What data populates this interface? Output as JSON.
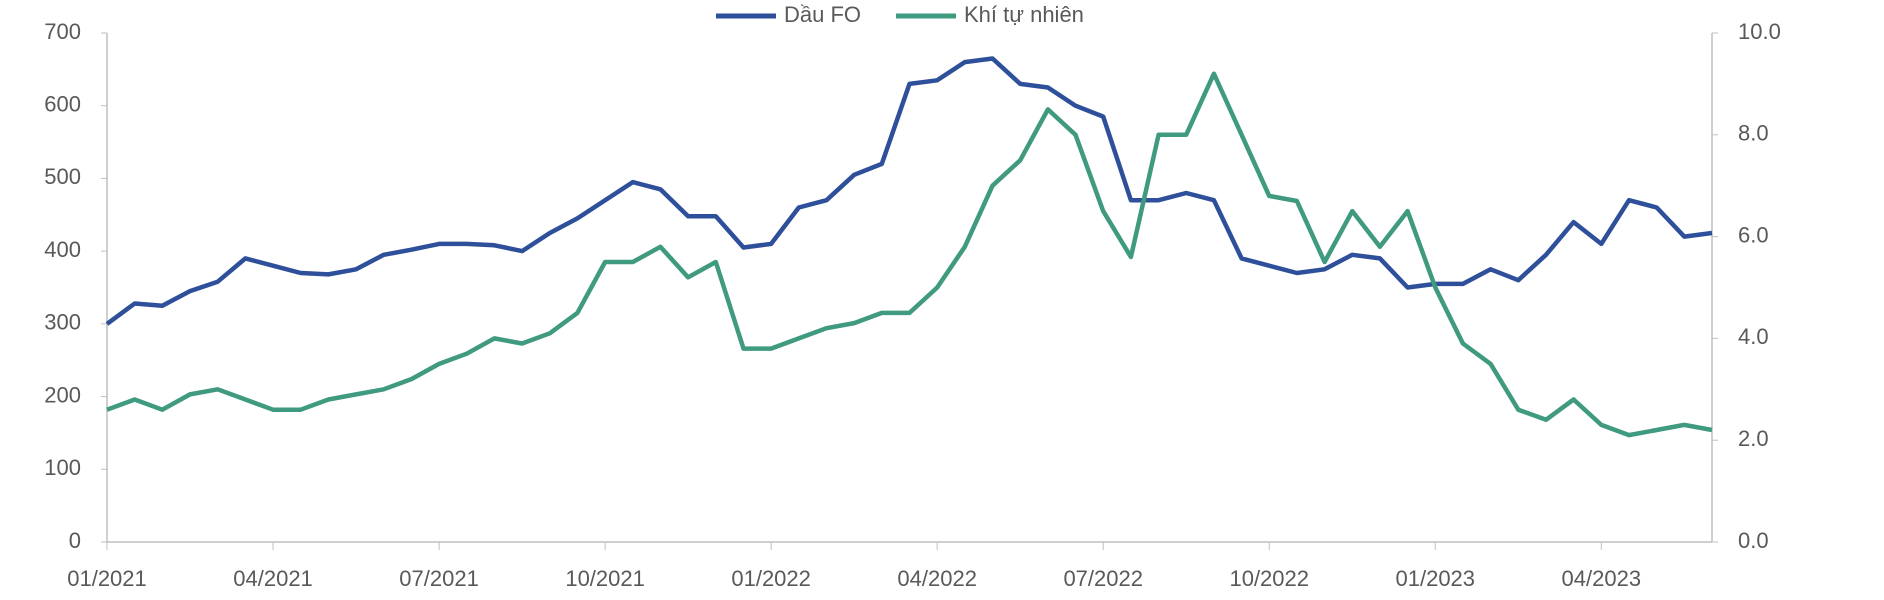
{
  "chart_data": {
    "type": "line",
    "categories": [
      "01/2021",
      null,
      null,
      null,
      null,
      null,
      "04/2021",
      null,
      null,
      null,
      null,
      null,
      "07/2021",
      null,
      null,
      null,
      null,
      null,
      "10/2021",
      null,
      null,
      null,
      null,
      null,
      "01/2022",
      null,
      null,
      null,
      null,
      null,
      "04/2022",
      null,
      null,
      null,
      null,
      null,
      "07/2022",
      null,
      null,
      null,
      null,
      null,
      "10/2022",
      null,
      null,
      null,
      null,
      null,
      "01/2023",
      null,
      null,
      null,
      null,
      null,
      "04/2023",
      null,
      null,
      null,
      null
    ],
    "series": [
      {
        "name": "Dầu FO",
        "color": "#2e4f9a",
        "values": [
          300,
          328,
          325,
          345,
          358,
          390,
          380,
          370,
          368,
          375,
          395,
          402,
          410,
          410,
          408,
          400,
          425,
          445,
          470,
          495,
          485,
          448,
          448,
          405,
          410,
          460,
          470,
          505,
          520,
          630,
          635,
          660,
          665,
          630,
          625,
          600,
          585,
          470,
          470,
          480,
          470,
          390,
          380,
          370,
          375,
          395,
          390,
          350,
          355,
          355,
          375,
          360,
          395,
          440,
          410,
          470,
          460,
          420,
          425
        ]
      },
      {
        "name": "Khí tự nhiên",
        "color": "#3f9a80",
        "axis": "y2",
        "values": [
          2.6,
          2.8,
          2.6,
          2.9,
          3.0,
          2.8,
          2.6,
          2.6,
          2.8,
          2.9,
          3.0,
          3.2,
          3.5,
          3.7,
          4.0,
          3.9,
          4.1,
          4.5,
          5.5,
          5.5,
          5.8,
          5.2,
          5.5,
          3.8,
          3.8,
          4.0,
          4.2,
          4.3,
          4.5,
          4.5,
          5.0,
          5.8,
          7.0,
          7.5,
          8.5,
          8.0,
          6.5,
          5.6,
          8.0,
          8.0,
          9.2,
          8.0,
          6.8,
          6.7,
          5.5,
          6.5,
          5.8,
          6.5,
          5.0,
          3.9,
          3.5,
          2.6,
          2.4,
          2.8,
          2.3,
          2.1,
          2.2,
          2.3,
          2.2
        ]
      }
    ],
    "ylim": [
      0,
      700
    ],
    "yticks": [
      0,
      100,
      200,
      300,
      400,
      500,
      600,
      700
    ],
    "y2lim": [
      0,
      10
    ],
    "y2ticks": [
      {
        "value": 0,
        "label": "0.0"
      },
      {
        "value": 2,
        "label": "2.0"
      },
      {
        "value": 4,
        "label": "4.0"
      },
      {
        "value": 6,
        "label": "6.0"
      },
      {
        "value": 8,
        "label": "8.0"
      },
      {
        "value": 10,
        "label": "10.0"
      }
    ],
    "legend": "top"
  }
}
